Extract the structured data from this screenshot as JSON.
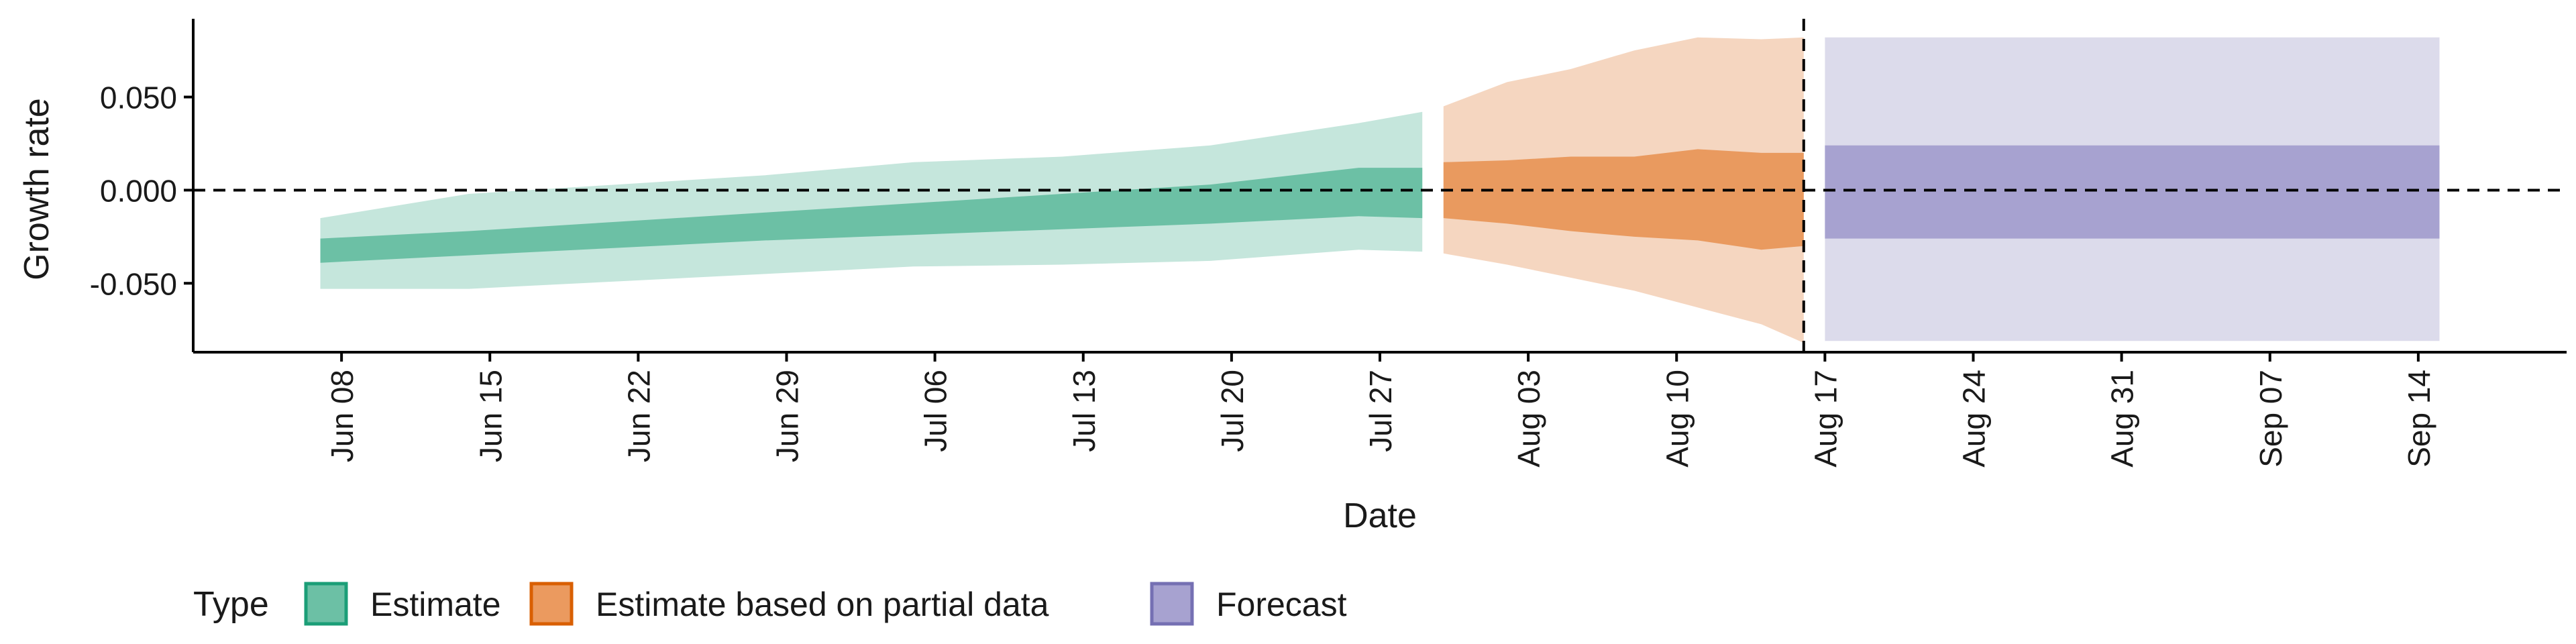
{
  "chart_data": {
    "type": "area",
    "title": "",
    "xlabel": "Date",
    "ylabel": "Growth rate",
    "legend": {
      "title": "Type",
      "position": "bottom-left",
      "items": [
        {
          "label": "Estimate",
          "fill": "#6cc0a5",
          "border": "#1b9e77"
        },
        {
          "label": "Estimate based on partial data",
          "fill": "#eb9a5f",
          "border": "#d95f02"
        },
        {
          "label": "Forecast",
          "fill": "#a7a2d0",
          "border": "#7570b3"
        }
      ]
    },
    "x_ticks": [
      "Jun 08",
      "Jun 15",
      "Jun 22",
      "Jun 29",
      "Jul 06",
      "Jul 13",
      "Jul 20",
      "Jul 27",
      "Aug 03",
      "Aug 10",
      "Aug 17",
      "Aug 24",
      "Aug 31",
      "Sep 07",
      "Sep 14"
    ],
    "y_ticks": [
      "0.050",
      "0.000",
      "-0.050"
    ],
    "y_tick_values": [
      0.05,
      0.0,
      -0.05
    ],
    "ylim": [
      -0.087,
      0.092
    ],
    "xlim": [
      "2020-06-01",
      "2020-09-21"
    ],
    "reference_lines": [
      {
        "axis": "y",
        "value": 0.0,
        "style": "dashed"
      },
      {
        "axis": "x",
        "value": "2020-08-16",
        "style": "dashed"
      }
    ],
    "grid": false,
    "colors": {
      "estimate_outer": "#c5e6dc",
      "estimate_inner": "#6cc0a5",
      "partial_outer": "#f5d6c0",
      "partial_inner": "#e99a5f",
      "forecast_outer": "#dcdbeb",
      "forecast_inner": "#a7a2d0"
    },
    "series": [
      {
        "name": "Estimate",
        "x": [
          "2020-06-07",
          "2020-06-14",
          "2020-06-21",
          "2020-06-28",
          "2020-07-05",
          "2020-07-12",
          "2020-07-19",
          "2020-07-26",
          "2020-07-29"
        ],
        "outer_upper": [
          -0.015,
          -0.002,
          0.003,
          0.008,
          0.015,
          0.018,
          0.024,
          0.036,
          0.042
        ],
        "outer_lower": [
          -0.053,
          -0.053,
          -0.049,
          -0.045,
          -0.041,
          -0.04,
          -0.038,
          -0.032,
          -0.033
        ],
        "inner_upper": [
          -0.026,
          -0.022,
          -0.017,
          -0.012,
          -0.007,
          -0.002,
          0.003,
          0.012,
          0.012
        ],
        "inner_lower": [
          -0.039,
          -0.035,
          -0.031,
          -0.027,
          -0.024,
          -0.021,
          -0.018,
          -0.014,
          -0.015
        ]
      },
      {
        "name": "Estimate based on partial data",
        "x": [
          "2020-07-30",
          "2020-08-02",
          "2020-08-05",
          "2020-08-08",
          "2020-08-11",
          "2020-08-14",
          "2020-08-16"
        ],
        "outer_upper": [
          0.045,
          0.058,
          0.065,
          0.075,
          0.082,
          0.081,
          0.082
        ],
        "outer_lower": [
          -0.034,
          -0.04,
          -0.047,
          -0.054,
          -0.063,
          -0.072,
          -0.082
        ],
        "inner_upper": [
          0.015,
          0.016,
          0.018,
          0.018,
          0.022,
          0.02,
          0.02
        ],
        "inner_lower": [
          -0.015,
          -0.018,
          -0.022,
          -0.025,
          -0.027,
          -0.032,
          -0.03
        ]
      },
      {
        "name": "Forecast",
        "x": [
          "2020-08-17",
          "2020-09-15"
        ],
        "outer_upper": [
          0.082,
          0.082
        ],
        "outer_lower": [
          -0.081,
          -0.081
        ],
        "inner_upper": [
          0.024,
          0.024
        ],
        "inner_lower": [
          -0.026,
          -0.026
        ]
      }
    ]
  }
}
